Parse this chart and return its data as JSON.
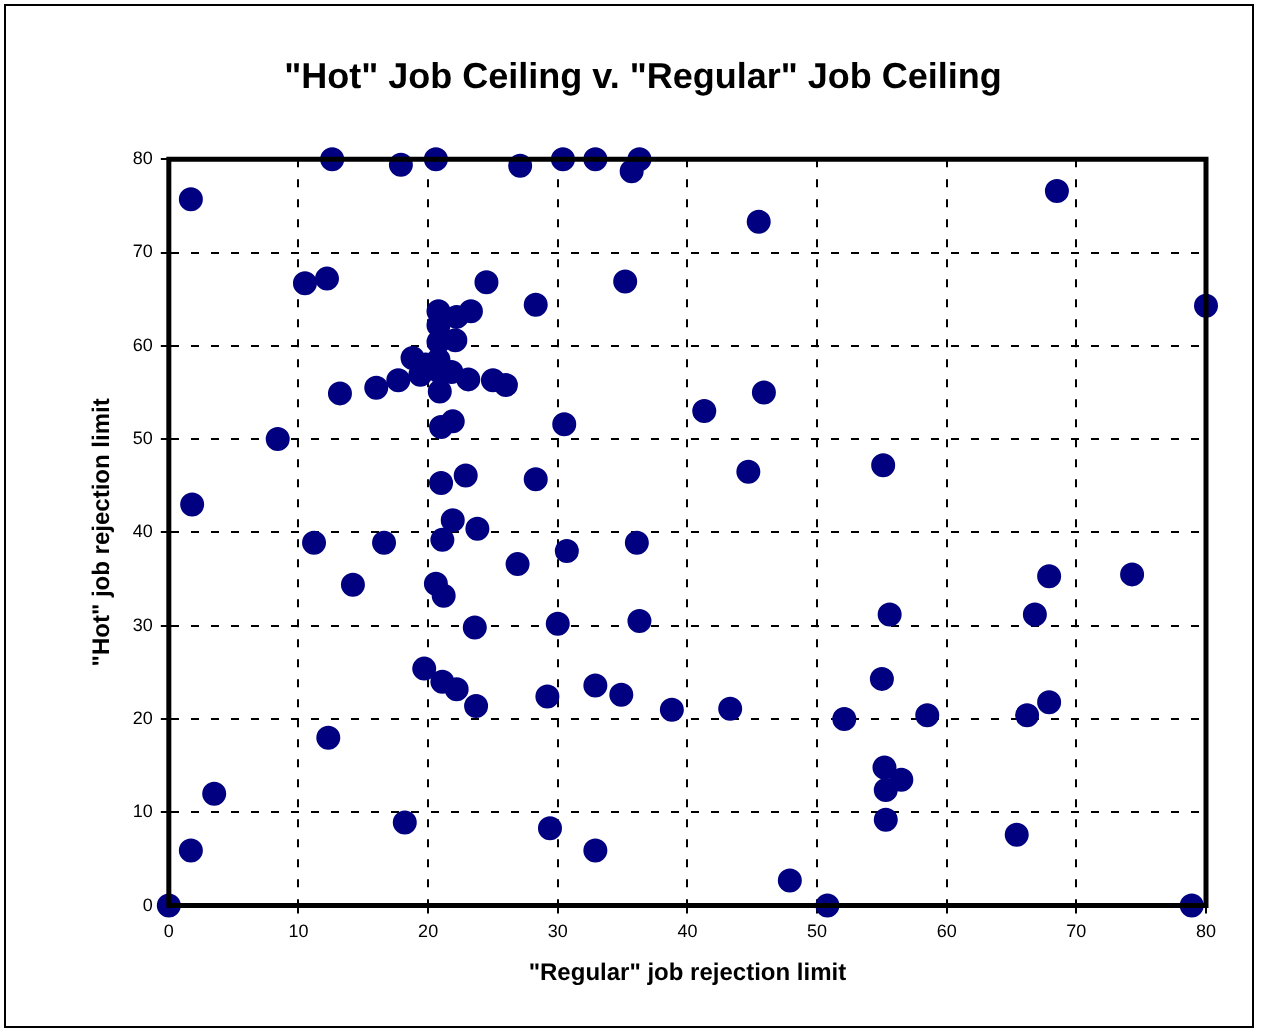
{
  "chart_data": {
    "type": "scatter",
    "title": "\"Hot\" Job Ceiling v. \"Regular\" Job Ceiling",
    "xlabel": "\"Regular\" job rejection limit",
    "ylabel": "\"Hot\" job rejection limit",
    "marker": "circle",
    "grid": true,
    "legend": false,
    "xlim": [
      0,
      80
    ],
    "xticks": [
      0,
      10,
      20,
      30,
      40,
      50,
      60,
      70,
      80
    ],
    "ylim": [
      0,
      80
    ],
    "yticks": [
      0,
      10,
      20,
      30,
      40,
      50,
      60,
      70,
      80
    ],
    "series": [
      {
        "color": "#000080",
        "x": [
          0,
          1.7,
          1.7,
          1.8,
          3.5,
          8.4,
          10.5,
          12.2,
          12.6,
          13.2,
          11.2,
          14.2,
          12.3,
          16.6,
          16,
          17.9,
          17.7,
          18.2,
          18.8,
          19.4,
          19.8,
          19.7,
          20.6,
          20.6,
          20.8,
          20.8,
          20.8,
          20.8,
          20.9,
          20.9,
          21.1,
          21.2,
          21,
          21,
          21.1,
          21.9,
          22.2,
          22.1,
          21.8,
          21.9,
          22.2,
          22.9,
          23.3,
          23.1,
          23.7,
          23.6,
          23.8,
          24.5,
          25,
          26,
          27.1,
          26.9,
          28.3,
          28.3,
          29.2,
          29.4,
          30,
          30.4,
          30.5,
          30.7,
          32.9,
          32.9,
          32.9,
          34.9,
          35.2,
          35.7,
          36.3,
          36.1,
          36.3,
          38.8,
          41.3,
          43.3,
          44.7,
          45.5,
          45.9,
          47.9,
          50.8,
          52.1,
          55.1,
          55,
          55.6,
          55.2,
          56.5,
          55.3,
          55.3,
          58.5,
          65.4,
          66.2,
          66.8,
          67.9,
          67.9,
          68.5,
          74.3,
          80,
          78.9
        ],
        "values": [
          0,
          75.7,
          5.9,
          43,
          12,
          50,
          66.7,
          67.2,
          80,
          54.9,
          38.9,
          34.4,
          18,
          38.9,
          55.5,
          79.4,
          56.3,
          8.9,
          58.7,
          56.9,
          58,
          25.4,
          80,
          34.5,
          63.7,
          62.2,
          60.4,
          58.5,
          57.2,
          55.1,
          39.2,
          33.2,
          51.3,
          45.3,
          24,
          51.9,
          63.1,
          60.6,
          57.2,
          41.3,
          23.2,
          46.1,
          63.7,
          56.4,
          21.4,
          29.8,
          40.4,
          66.8,
          56.3,
          55.8,
          79.3,
          36.6,
          64.4,
          45.7,
          22.4,
          8.3,
          30.2,
          80,
          51.6,
          38,
          80,
          23.6,
          5.9,
          22.6,
          66.9,
          78.7,
          80,
          38.9,
          30.5,
          21,
          53,
          21.1,
          46.5,
          73.3,
          55,
          2.7,
          0,
          20,
          47.2,
          24.3,
          31.2,
          14.8,
          13.5,
          12.4,
          9.2,
          20.4,
          7.6,
          20.4,
          31.2,
          21.8,
          35.3,
          76.6,
          35.5,
          64.3,
          0
        ]
      }
    ]
  }
}
